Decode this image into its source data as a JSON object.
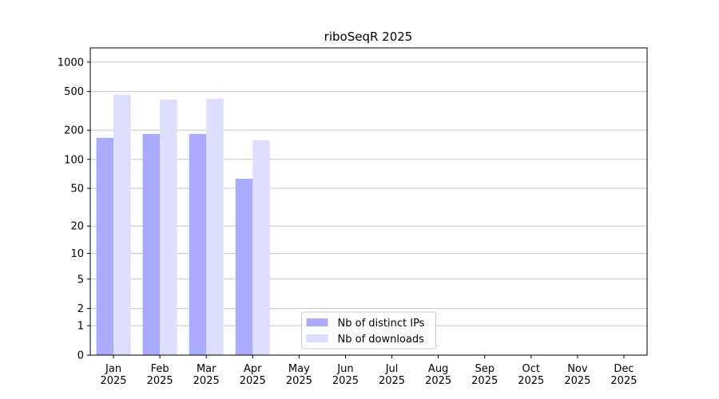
{
  "chart_data": {
    "type": "bar",
    "title": "riboSeqR 2025",
    "categories": [
      "Jan\n2025",
      "Feb\n2025",
      "Mar\n2025",
      "Apr\n2025",
      "May\n2025",
      "Jun\n2025",
      "Jul\n2025",
      "Aug\n2025",
      "Sep\n2025",
      "Oct\n2025",
      "Nov\n2025",
      "Dec\n2025"
    ],
    "series": [
      {
        "name": "Nb of distinct IPs",
        "color": "#aaaaff",
        "values": [
          167,
          183,
          183,
          63,
          null,
          null,
          null,
          null,
          null,
          null,
          null,
          null
        ]
      },
      {
        "name": "Nb of downloads",
        "color": "#ddddff",
        "values": [
          462,
          413,
          421,
          158,
          null,
          null,
          null,
          null,
          null,
          null,
          null,
          null
        ]
      }
    ],
    "yscale": "log1p",
    "ylim": [
      0,
      1400
    ],
    "yticks": [
      0,
      1,
      2,
      5,
      10,
      20,
      50,
      100,
      200,
      500,
      1000
    ],
    "grid": true,
    "legend": "lower center"
  }
}
